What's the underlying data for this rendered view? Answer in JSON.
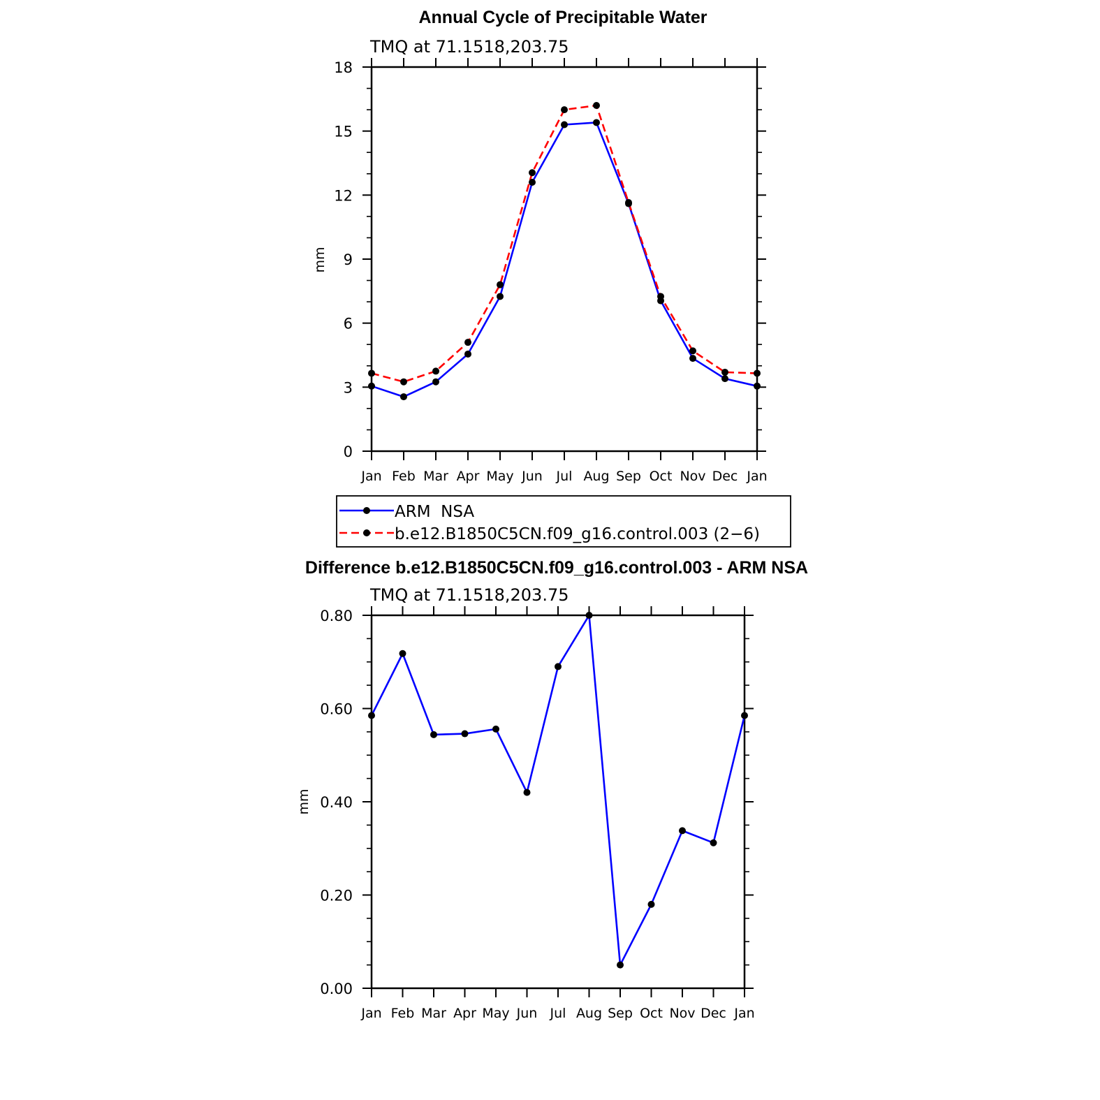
{
  "chart_data": [
    {
      "type": "line",
      "title": "Annual Cycle of Precipitable Water",
      "subtitle": "TMQ  at  71.1518,203.75",
      "xlabel": "",
      "ylabel": "mm",
      "categories": [
        "Jan",
        "Feb",
        "Mar",
        "Apr",
        "May",
        "Jun",
        "Jul",
        "Aug",
        "Sep",
        "Oct",
        "Nov",
        "Dec",
        "Jan"
      ],
      "ylim": [
        0,
        18
      ],
      "yticks": [
        "0",
        "3",
        "6",
        "9",
        "12",
        "15",
        "18"
      ],
      "series": [
        {
          "name": "ARM  NSA",
          "color": "#0000ff",
          "dash": "solid",
          "marker": "circle",
          "values": [
            3.05,
            2.55,
            3.25,
            4.55,
            7.25,
            12.6,
            15.3,
            15.4,
            11.6,
            7.05,
            4.35,
            3.4,
            3.05
          ]
        },
        {
          "name": "b.e12.B1850C5CN.f09_g16.control.003 (2−6)",
          "color": "#ff0000",
          "dash": "dashed",
          "marker": "circle",
          "values": [
            3.65,
            3.25,
            3.75,
            5.1,
            7.8,
            13.05,
            16.0,
            16.2,
            11.65,
            7.25,
            4.7,
            3.7,
            3.65
          ]
        }
      ],
      "legend": "bottom"
    },
    {
      "type": "line",
      "title": "Difference b.e12.B1850C5CN.f09_g16.control.003 - ARM NSA",
      "subtitle": "TMQ  at  71.1518,203.75",
      "xlabel": "",
      "ylabel": "mm",
      "categories": [
        "Jan",
        "Feb",
        "Mar",
        "Apr",
        "May",
        "Jun",
        "Jul",
        "Aug",
        "Sep",
        "Oct",
        "Nov",
        "Dec",
        "Jan"
      ],
      "ylim": [
        0,
        0.8
      ],
      "yticks": [
        "0.00",
        "0.20",
        "0.40",
        "0.60",
        "0.80"
      ],
      "series": [
        {
          "name": "Difference",
          "color": "#0000ff",
          "dash": "solid",
          "marker": "circle",
          "values": [
            0.585,
            0.718,
            0.544,
            0.546,
            0.556,
            0.42,
            0.69,
            0.8,
            0.05,
            0.18,
            0.338,
            0.312,
            0.585
          ]
        }
      ]
    }
  ]
}
